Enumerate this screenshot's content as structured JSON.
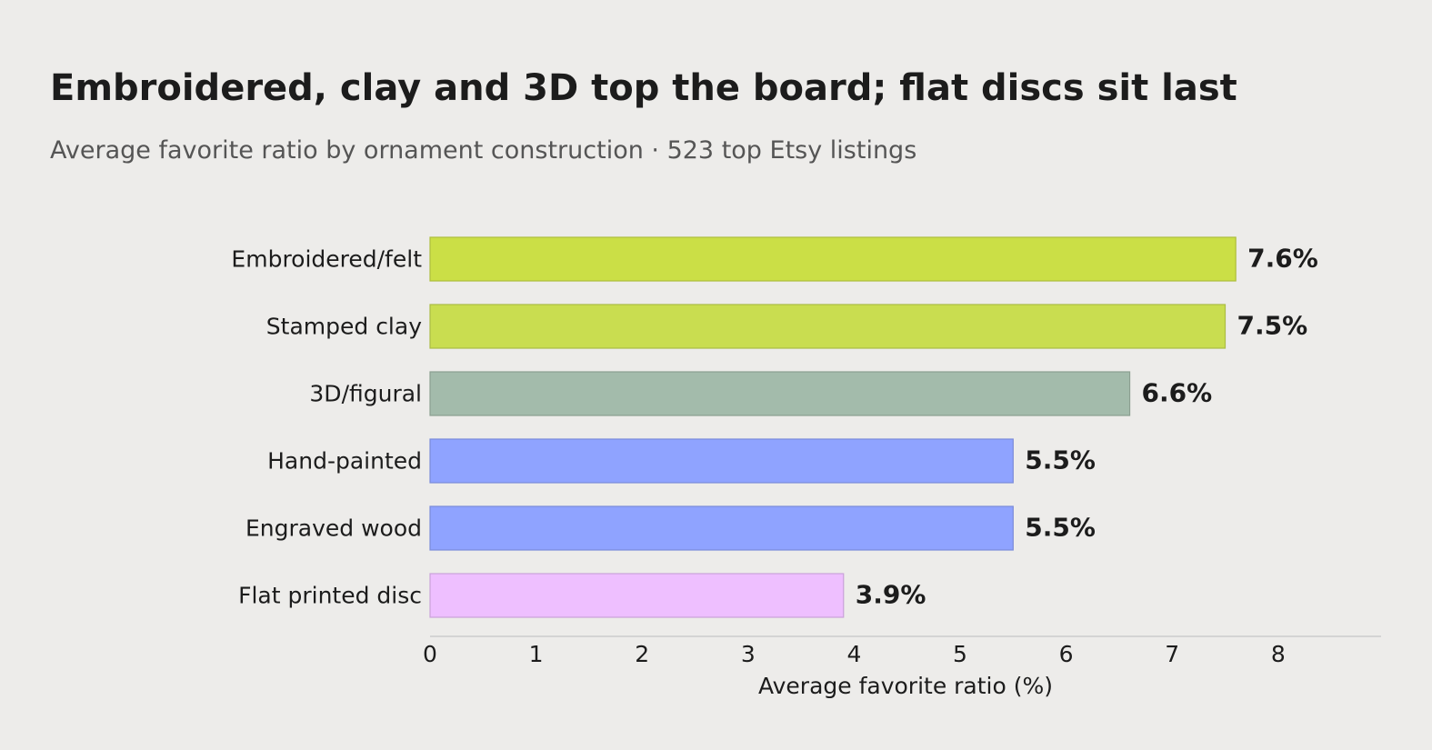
{
  "chart_data": {
    "type": "bar",
    "orientation": "horizontal",
    "title": "Embroidered, clay and 3D top the board; flat discs sit last",
    "subtitle": "Average favorite ratio by ornament construction · 523 top Etsy listings",
    "categories": [
      "Embroidered/felt",
      "Stamped clay",
      "3D/figural",
      "Hand-painted",
      "Engraved wood",
      "Flat printed disc"
    ],
    "values": [
      7.6,
      7.5,
      6.6,
      5.5,
      5.5,
      3.9
    ],
    "value_labels": [
      "7.6%",
      "7.5%",
      "6.6%",
      "5.5%",
      "5.5%",
      "3.9%"
    ],
    "colors": [
      "#cbdf46",
      "#c9dd50",
      "#a3bbab",
      "#8fa3ff",
      "#8fa3ff",
      "#eebfff"
    ],
    "xlabel": "Average favorite ratio (%)",
    "ylabel": "",
    "xlim": [
      0,
      8.97
    ],
    "xticks": [
      0,
      1,
      2,
      3,
      4,
      5,
      6,
      7,
      8
    ],
    "grid": false,
    "legend": "none"
  }
}
